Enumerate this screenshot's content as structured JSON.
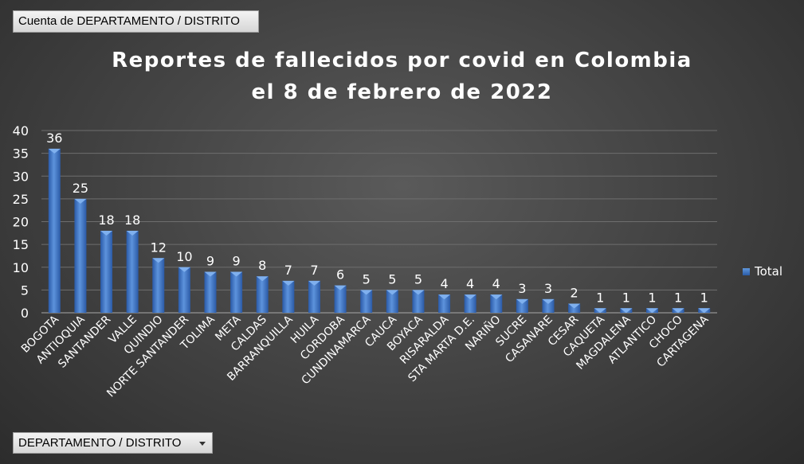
{
  "pivot": {
    "field_button": "Cuenta de DEPARTAMENTO / DISTRITO",
    "axis_button": "DEPARTAMENTO / DISTRITO"
  },
  "chart_data": {
    "type": "bar",
    "title_line1": "Reportes de fallecidos por covid en Colombia",
    "title_line2": "el 8 de febrero de 2022",
    "categories": [
      "BOGOTA",
      "ANTIOQUIA",
      "SANTANDER",
      "VALLE",
      "QUINDIO",
      "NORTE SANTANDER",
      "TOLIMA",
      "META",
      "CALDAS",
      "BARRANQUILLA",
      "HUILA",
      "CORDOBA",
      "CUNDINAMARCA",
      "CAUCA",
      "BOYACA",
      "RISARALDA",
      "STA MARTA D.E.",
      "NARIÑO",
      "SUCRE",
      "CASANARE",
      "CESAR",
      "CAQUETA",
      "MAGDALENA",
      "ATLANTICO",
      "CHOCO",
      "CARTAGENA"
    ],
    "series": [
      {
        "name": "Total",
        "values": [
          36,
          25,
          18,
          18,
          12,
          10,
          9,
          9,
          8,
          7,
          7,
          6,
          5,
          5,
          5,
          4,
          4,
          4,
          3,
          3,
          2,
          1,
          1,
          1,
          1,
          1
        ]
      }
    ],
    "ylim": [
      0,
      40
    ],
    "yticks": [
      0,
      5,
      10,
      15,
      20,
      25,
      30,
      35,
      40
    ],
    "grid": true,
    "legend": "right",
    "bar_color": "#3d74c4"
  }
}
